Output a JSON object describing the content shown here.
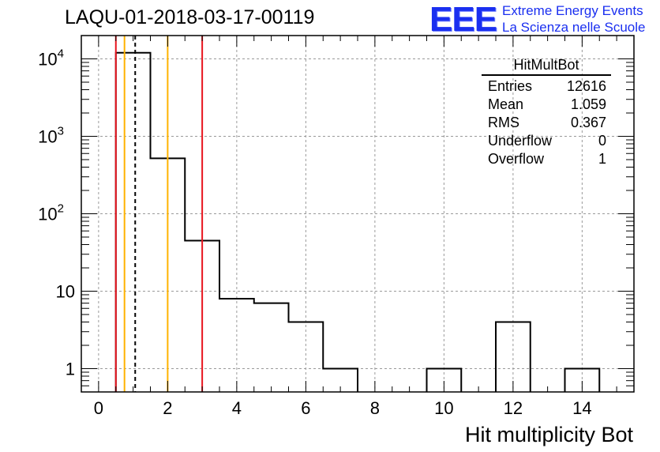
{
  "title": "LAQU-01-2018-03-17-00119",
  "logo": {
    "text": "EEE",
    "line1": "Extreme Energy Events",
    "line2": "La Scienza nelle Scuole",
    "color": "#1a2ff0"
  },
  "stats_box": {
    "name": "HitMultBot",
    "rows": [
      {
        "label": "Entries",
        "value": "12616"
      },
      {
        "label": "Mean",
        "value": "1.059"
      },
      {
        "label": "RMS",
        "value": "0.367"
      },
      {
        "label": "Underflow",
        "value": "0"
      },
      {
        "label": "Overflow",
        "value": "1"
      }
    ]
  },
  "chart_data": {
    "type": "histogram",
    "title": "LAQU-01-2018-03-17-00119",
    "xlabel": "Hit multiplicity Bot",
    "ylabel": "",
    "yscale": "log",
    "xlim": [
      -0.5,
      15.5
    ],
    "ylim": [
      0.5,
      20000
    ],
    "grid": true,
    "x_ticks": [
      0,
      2,
      4,
      6,
      8,
      10,
      12,
      14
    ],
    "y_ticks": [
      {
        "value": 1,
        "label": "1"
      },
      {
        "value": 10,
        "label": "10"
      },
      {
        "value": 100,
        "label": "10",
        "exp": "2"
      },
      {
        "value": 1000,
        "label": "10",
        "exp": "3"
      },
      {
        "value": 10000,
        "label": "10",
        "exp": "4"
      }
    ],
    "bins": [
      {
        "low": 0.5,
        "high": 1.5,
        "count": 12000
      },
      {
        "low": 1.5,
        "high": 2.5,
        "count": 520
      },
      {
        "low": 2.5,
        "high": 3.5,
        "count": 45
      },
      {
        "low": 3.5,
        "high": 4.5,
        "count": 8
      },
      {
        "low": 4.5,
        "high": 5.5,
        "count": 7
      },
      {
        "low": 5.5,
        "high": 6.5,
        "count": 4
      },
      {
        "low": 6.5,
        "high": 7.5,
        "count": 1
      },
      {
        "low": 9.5,
        "high": 10.5,
        "count": 1
      },
      {
        "low": 11.5,
        "high": 12.5,
        "count": 4
      },
      {
        "low": 13.5,
        "high": 14.5,
        "count": 1
      }
    ],
    "vertical_lines": [
      {
        "x": 0.5,
        "color": "#e8141e",
        "style": "solid",
        "name": "red-line-low"
      },
      {
        "x": 0.75,
        "color": "#ffb300",
        "style": "solid",
        "name": "orange-line-low"
      },
      {
        "x": 1.06,
        "color": "#000000",
        "style": "dashed",
        "name": "mean-line"
      },
      {
        "x": 2.0,
        "color": "#ffb300",
        "style": "solid",
        "name": "orange-line-high"
      },
      {
        "x": 3.0,
        "color": "#e8141e",
        "style": "solid",
        "name": "red-line-high"
      }
    ]
  }
}
